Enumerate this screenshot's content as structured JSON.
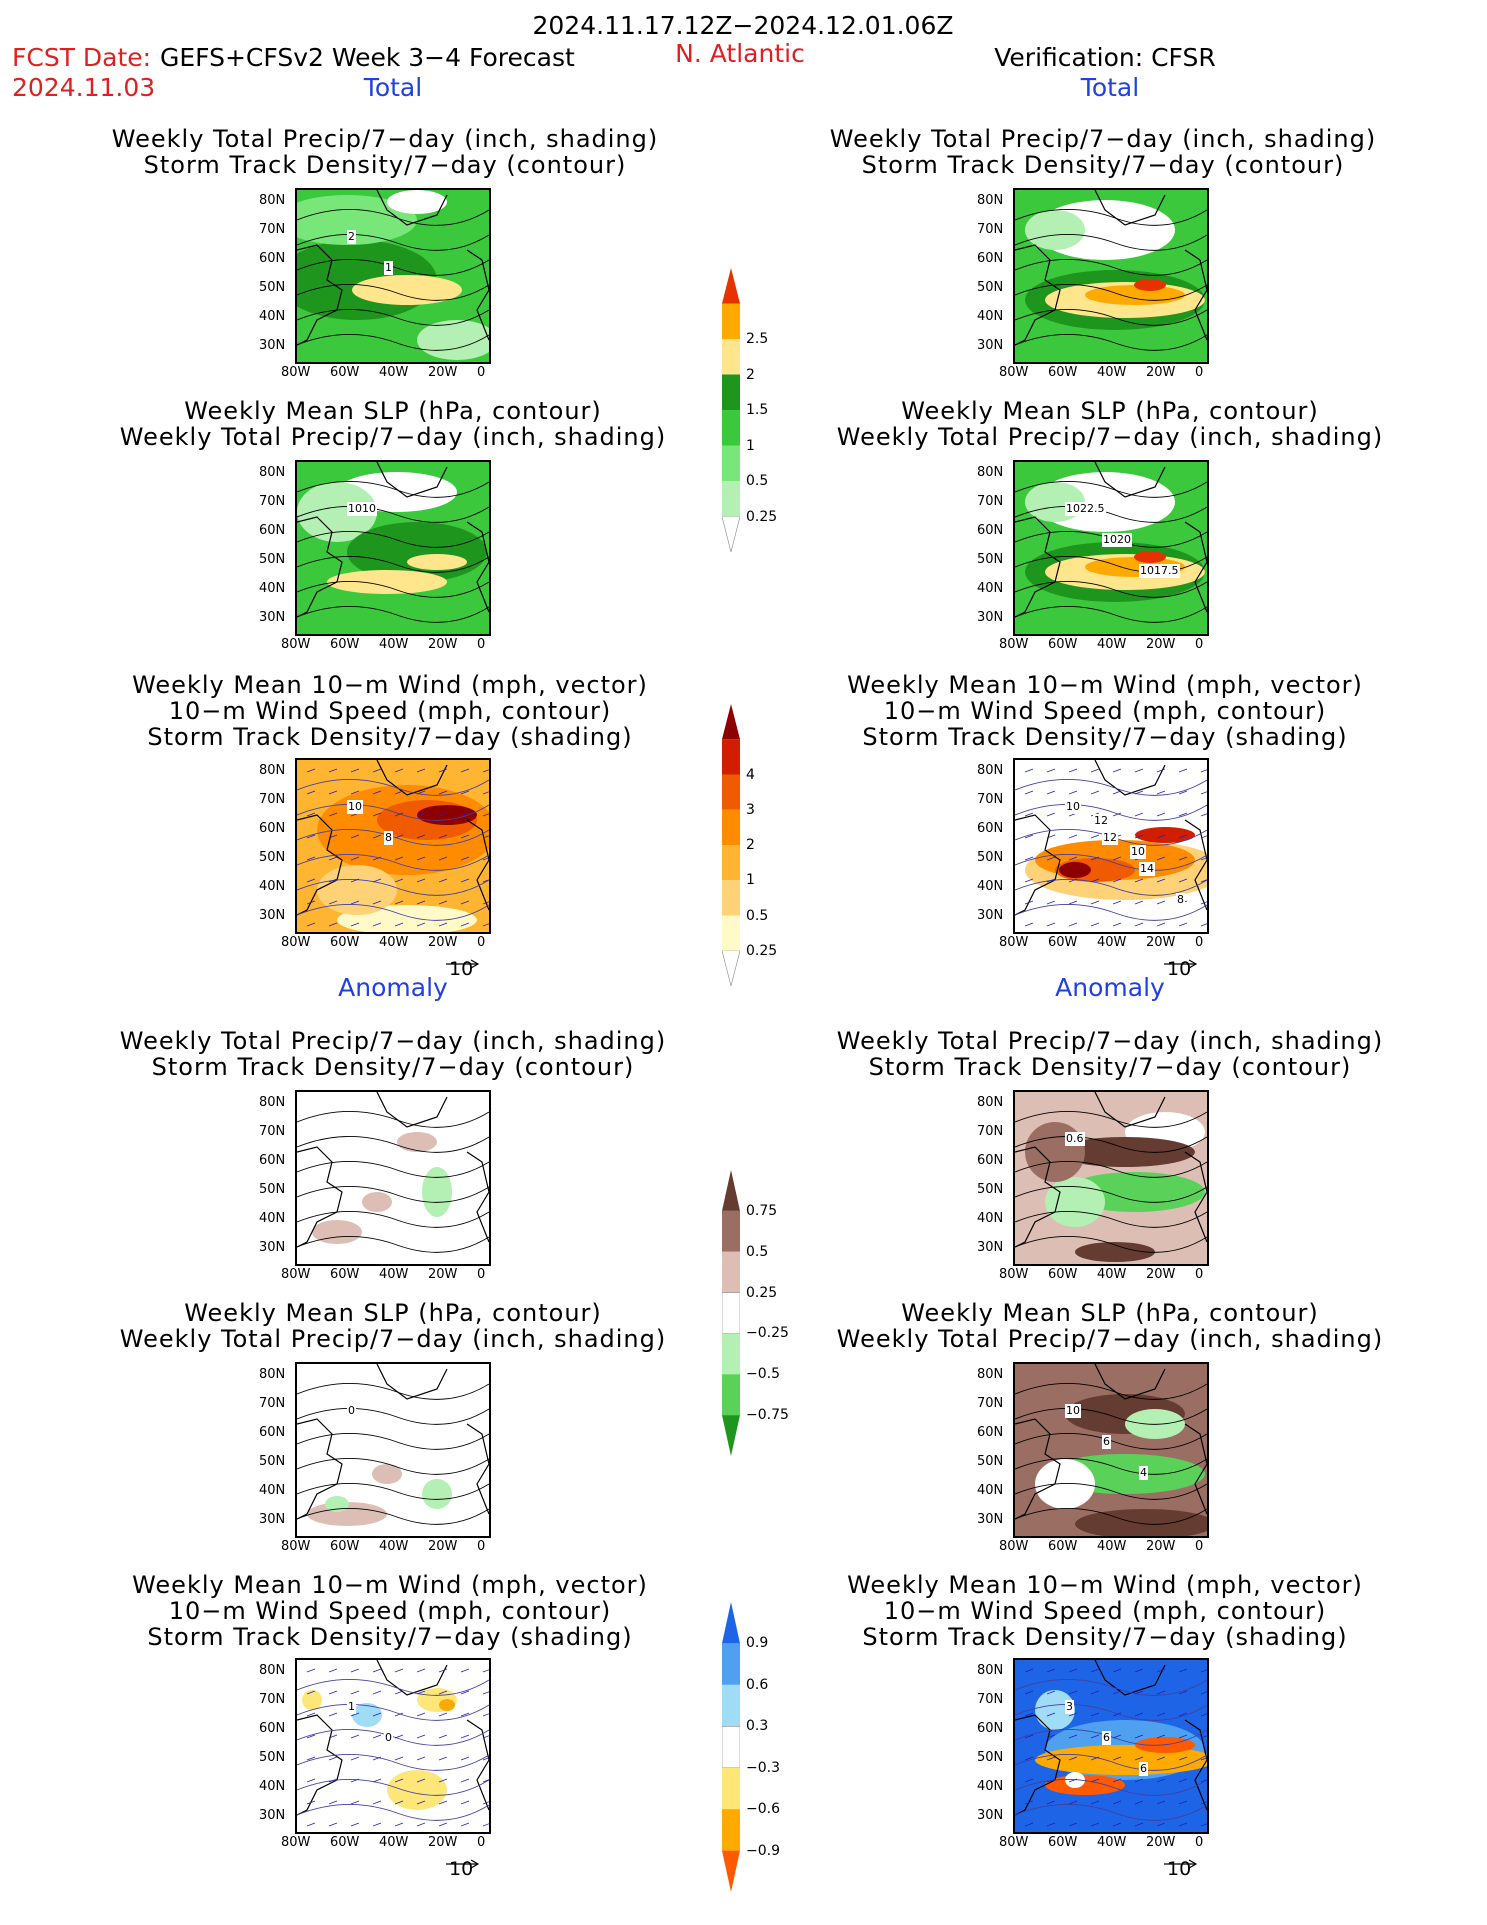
{
  "header": {
    "period": "2024.11.17.12Z−2024.12.01.06Z",
    "fcst_label": "FCST Date:",
    "model": "GEFS+CFSv2 Week 3−4 Forecast",
    "fcst_date": "2024.11.03",
    "region": "N. Atlantic",
    "verification": "Verification: CFSR"
  },
  "sections": {
    "total": "Total",
    "anomaly": "Anomaly"
  },
  "titles": {
    "precip_storm": [
      "Weekly Total Precip/7−day (inch, shading)",
      "Storm Track Density/7−day (contour)"
    ],
    "slp_precip": [
      "Weekly Mean SLP (hPa, contour)",
      "Weekly Total Precip/7−day (inch, shading)"
    ],
    "wind_storm": [
      "Weekly Mean 10−m Wind (mph, vector)",
      "10−m Wind Speed (mph, contour)",
      "Storm Track Density/7−day (shading)"
    ]
  },
  "axes": {
    "lat": [
      "80N",
      "70N",
      "60N",
      "50N",
      "40N",
      "30N"
    ],
    "lon": [
      "80W",
      "60W",
      "40W",
      "20W",
      "0"
    ]
  },
  "vector_ref": "10",
  "colorbars": {
    "precip_total": {
      "colors": [
        "#ffffff",
        "#b4f0b4",
        "#78e678",
        "#3cc83c",
        "#1e961e",
        "#ffe68c",
        "#ffaa00",
        "#e63200"
      ],
      "labels": [
        "0.25",
        "0.5",
        "1",
        "1.5",
        "2",
        "2.5"
      ]
    },
    "storm_total": {
      "colors": [
        "#ffffff",
        "#fffac8",
        "#ffd278",
        "#ffb432",
        "#ff8c00",
        "#f05a00",
        "#d21e00",
        "#8c0000"
      ],
      "labels": [
        "0.25",
        "0.5",
        "1",
        "2",
        "3",
        "4"
      ]
    },
    "precip_anom": {
      "colors": [
        "#643c32",
        "#9b6e64",
        "#dcbeb4",
        "#ffffff",
        "#b4f0b4",
        "#5ad25a",
        "#1e961e"
      ],
      "labels": [
        "0.75",
        "0.5",
        "0.25",
        "−0.25",
        "−0.5",
        "−0.75"
      ]
    },
    "storm_anom": {
      "colors": [
        "#1e64e6",
        "#50a0f0",
        "#a0dcf5",
        "#ffffff",
        "#ffe678",
        "#ffaa00",
        "#ff5a00"
      ],
      "labels": [
        "0.9",
        "0.6",
        "0.3",
        "−0.3",
        "−0.6",
        "−0.9"
      ]
    }
  },
  "map_labels": {
    "l1": [
      "2",
      "1"
    ],
    "l2": [
      "1010"
    ],
    "l3": [
      "10",
      "8"
    ],
    "r2": [
      "1022.5",
      "1020",
      "1017.5"
    ],
    "r3": [
      "10",
      "12",
      "14",
      "8",
      "12",
      "10"
    ],
    "r4": [
      "0.6"
    ],
    "r5": [
      "10",
      "6",
      "4"
    ],
    "l5": [
      "0"
    ],
    "l6": [
      "1",
      "0"
    ],
    "r6": [
      "3",
      "6",
      "6"
    ]
  },
  "colors": {
    "title_red": "#e02020",
    "section_blue": "#2040e0"
  }
}
